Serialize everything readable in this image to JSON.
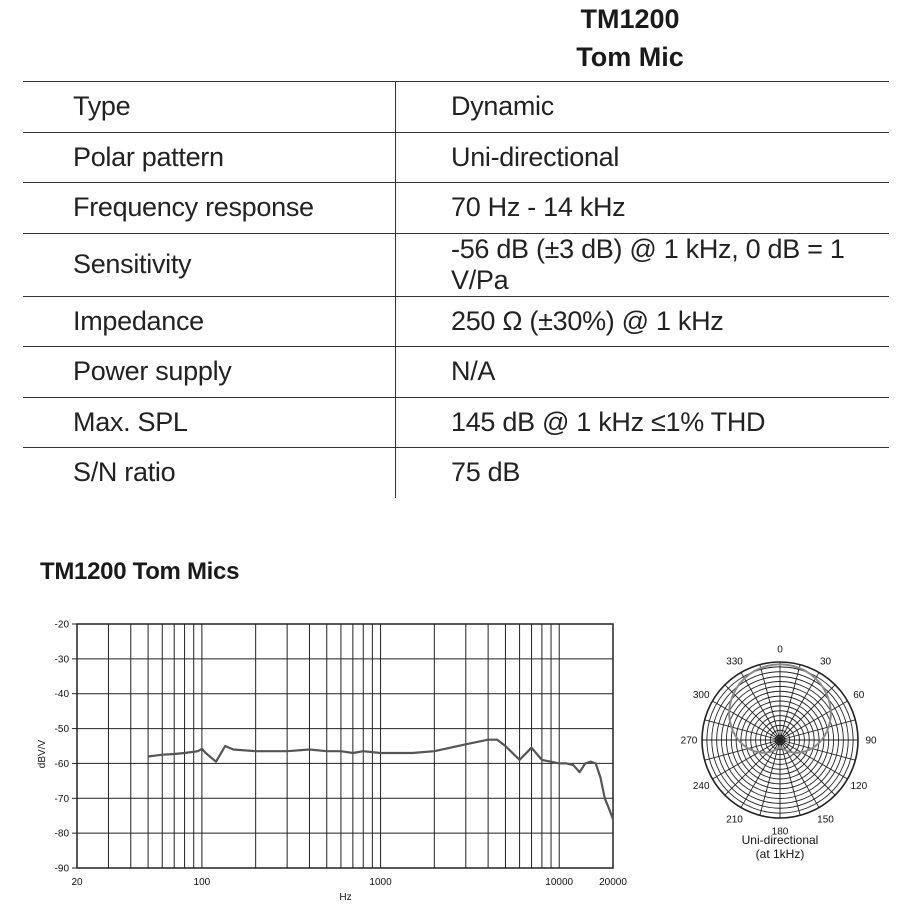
{
  "header": {
    "model": "TM1200",
    "subtitle": "Tom Mic"
  },
  "specs": [
    {
      "label": "Type",
      "value": "Dynamic"
    },
    {
      "label": "Polar pattern",
      "value": "Uni-directional"
    },
    {
      "label": "Frequency response",
      "value": "70 Hz - 14 kHz"
    },
    {
      "label": "Sensitivity",
      "value": "-56 dB (±3 dB) @ 1 kHz, 0 dB = 1 V/Pa"
    },
    {
      "label": "Impedance",
      "value": "250 Ω (±30%) @ 1 kHz"
    },
    {
      "label": "Power supply",
      "value": "N/A"
    },
    {
      "label": "Max. SPL",
      "value": "145 dB @ 1 kHz ≤1% THD"
    },
    {
      "label": "S/N ratio",
      "value": "75 dB"
    }
  ],
  "chart_heading": "TM1200 Tom Mics",
  "chart_data": [
    {
      "type": "line",
      "title": "",
      "xlabel": "Hz",
      "ylabel": "dBV/V",
      "xscale": "log",
      "xlim": [
        20,
        20000
      ],
      "ylim": [
        -90,
        -20
      ],
      "xticks": [
        20,
        100,
        1000,
        10000,
        20000
      ],
      "yticks": [
        -20,
        -30,
        -40,
        -50,
        -60,
        -70,
        -80,
        -90
      ],
      "grid": true,
      "line_color": "#555555",
      "series": [
        {
          "x": [
            50,
            60,
            70,
            80,
            95,
            100,
            105,
            120,
            135,
            150,
            200,
            300,
            400,
            500,
            600,
            700,
            800,
            1000,
            1500,
            2000,
            3000,
            3500,
            4000,
            4500,
            5000,
            6000,
            7000,
            8000,
            9000,
            10000,
            11000,
            12000,
            13000,
            14000,
            15000,
            16000,
            17000,
            18000,
            19000,
            20000
          ],
          "y": [
            -58,
            -57.5,
            -57.3,
            -57,
            -56.5,
            -55.8,
            -57,
            -59.5,
            -55,
            -56,
            -56.5,
            -56.5,
            -56,
            -56.5,
            -56.5,
            -57,
            -56.5,
            -57,
            -57,
            -56.5,
            -54.5,
            -53.8,
            -53.2,
            -53.2,
            -55,
            -59,
            -55.5,
            -59,
            -59.5,
            -60,
            -60,
            -60.5,
            -62.5,
            -60,
            -59.5,
            -60,
            -64,
            -70,
            -73,
            -76
          ]
        }
      ]
    },
    {
      "type": "polar",
      "angle_labels": [
        "0",
        "30",
        "60",
        "90",
        "120",
        "150",
        "180",
        "210",
        "240",
        "270",
        "300",
        "330"
      ],
      "caption_line1": "Uni-directional",
      "caption_line2": "(at 1kHz)"
    }
  ]
}
